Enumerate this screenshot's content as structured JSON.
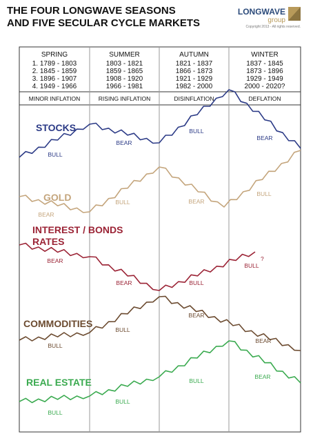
{
  "header": {
    "title": [
      "THE FOUR LONGWAVE SEASONS",
      "AND FIVE SECULAR CYCLE MARKETS"
    ],
    "logo": [
      "LONGWAVE",
      "group"
    ],
    "copyright": "Copyright 2013 - All rights reserved."
  },
  "seasons": [
    {
      "name": "SPRING",
      "periods": [
        "1. 1789 - 1803",
        "2. 1845 - 1859",
        "3. 1896 - 1907",
        "4. 1949 - 1966"
      ],
      "theme": "MINOR INFLATION"
    },
    {
      "name": "SUMMER",
      "periods": [
        "1803 - 1821",
        "1859 - 1865",
        "1908 - 1920",
        "1966 - 1981"
      ],
      "theme": "RISING INFLATION"
    },
    {
      "name": "AUTUMN",
      "periods": [
        "1821 - 1837",
        "1866 - 1873",
        "1921 - 1929",
        "1982 - 2000"
      ],
      "theme": "DISINFLATION"
    },
    {
      "name": "WINTER",
      "periods": [
        "1837 - 1845",
        "1873 - 1896",
        "1929 - 1949",
        "2000 - 2020?"
      ],
      "theme": "DEFLATION"
    }
  ],
  "markets": [
    {
      "name": [
        "STOCKS"
      ],
      "labels": [
        "BULL",
        "BEAR",
        "BULL",
        "BEAR"
      ]
    },
    {
      "name": [
        "GOLD"
      ],
      "labels": [
        "BEAR",
        "BULL",
        "BEAR",
        "BULL"
      ]
    },
    {
      "name": [
        "INTEREST / BONDS",
        "RATES"
      ],
      "labels": [
        "BEAR",
        "BEAR",
        "BULL",
        "BULL"
      ],
      "note": "?"
    },
    {
      "name": [
        "COMMODITIES"
      ],
      "labels": [
        "BULL",
        "BULL",
        "BEAR",
        "BEAR"
      ]
    },
    {
      "name": [
        "REAL ESTATE"
      ],
      "labels": [
        "BULL",
        "BULL",
        "BULL",
        "BEAR"
      ]
    }
  ]
}
